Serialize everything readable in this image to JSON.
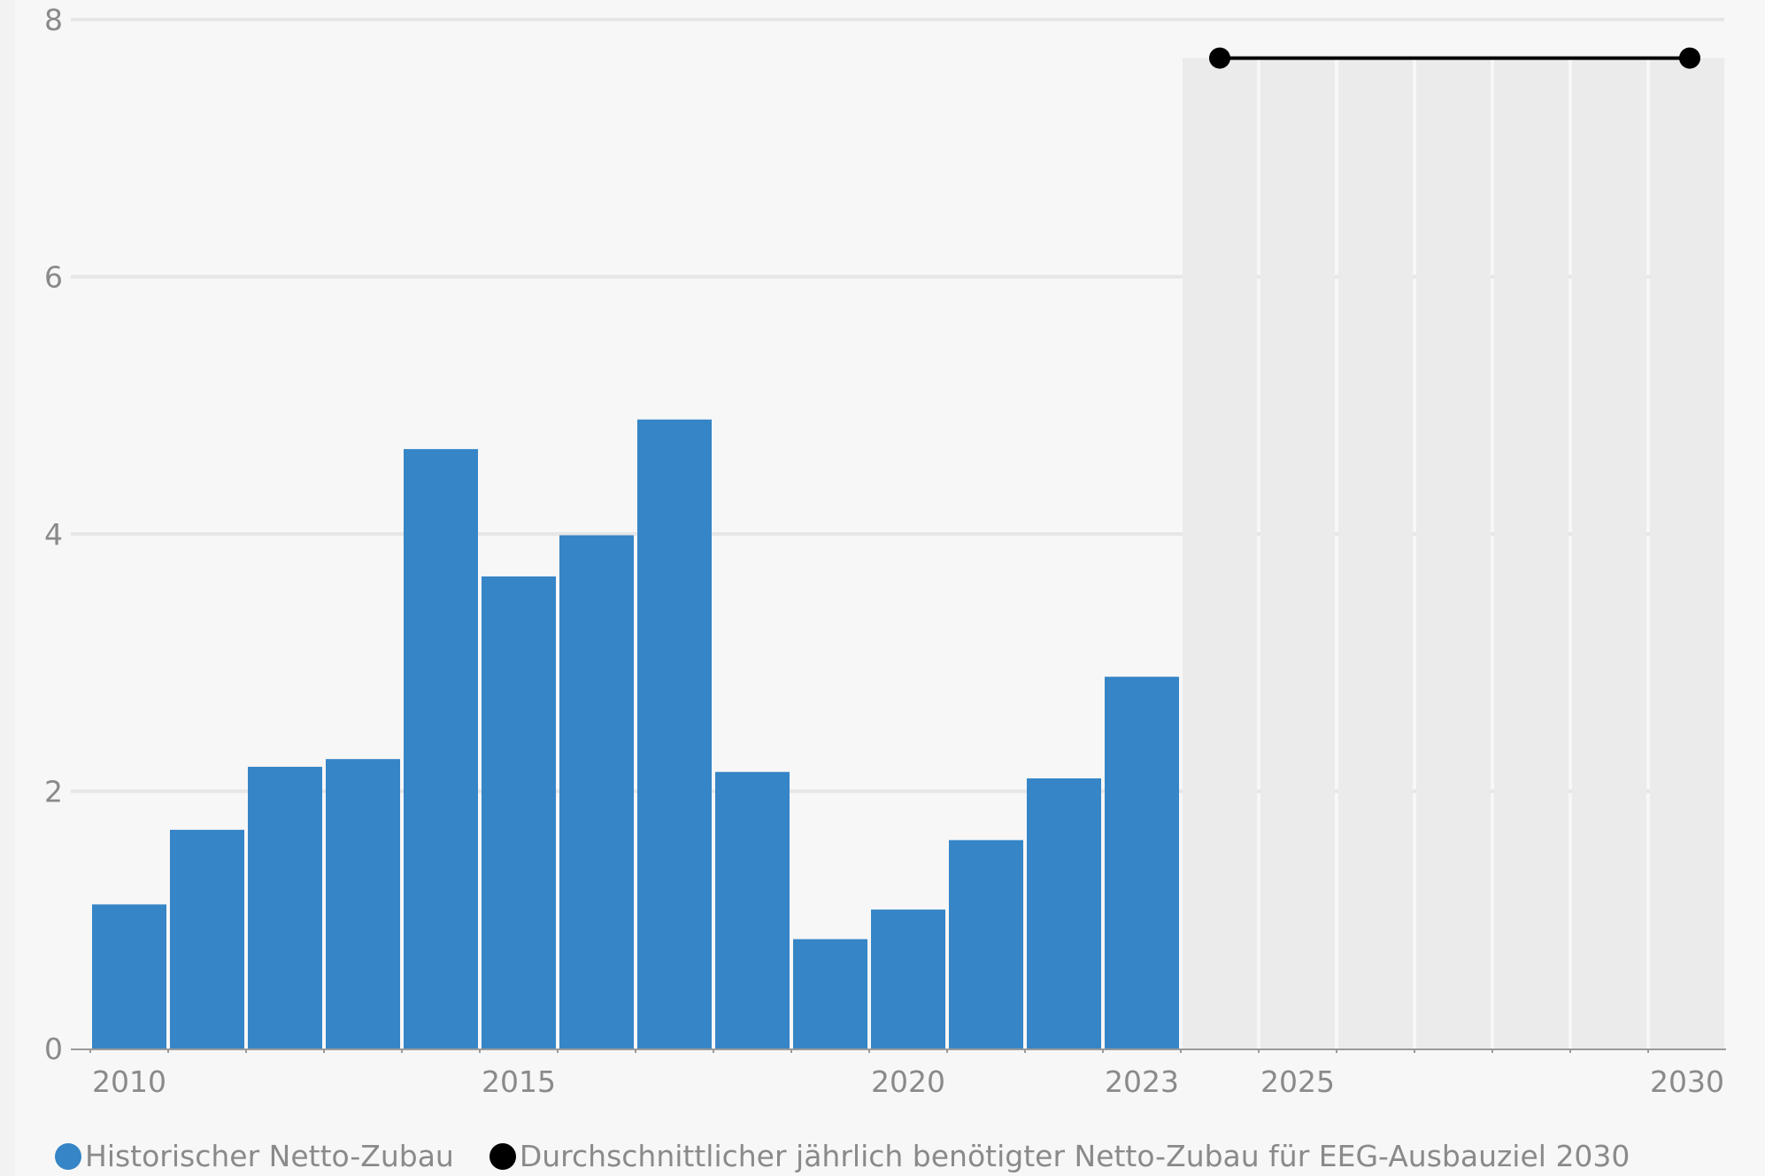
{
  "colors": {
    "bar": "#3585c7",
    "target_line": "#000000",
    "forecast_shade": "#ebebeb",
    "grid": "#e6e6e6",
    "axis": "#9a9a9a",
    "text": "#8a8a8a"
  },
  "legend": {
    "historic": "Historischer Netto-Zubau",
    "target": "Durchschnittlicher jährlich benötigter Netto-Zubau für EEG-Ausbauziel 2030"
  },
  "chart_data": {
    "type": "bar",
    "title": "",
    "xlabel": "",
    "ylabel": "",
    "ylim": [
      0,
      8
    ],
    "xlim": [
      2010,
      2030
    ],
    "yticks": [
      0,
      2,
      4,
      6,
      8
    ],
    "xticks": [
      2010,
      2015,
      2020,
      2023,
      2025,
      2030
    ],
    "grid": true,
    "legend_position": "bottom-left",
    "series": [
      {
        "name": "Historischer Netto-Zubau",
        "type": "bar",
        "x": [
          2010,
          2011,
          2012,
          2013,
          2014,
          2015,
          2016,
          2017,
          2018,
          2019,
          2020,
          2021,
          2022,
          2023
        ],
        "values": [
          1.12,
          1.7,
          2.19,
          2.25,
          4.66,
          3.67,
          3.99,
          4.89,
          2.15,
          0.85,
          1.08,
          1.62,
          2.1,
          2.89
        ]
      },
      {
        "name": "Durchschnittlicher jährlich benötigter Netto-Zubau für EEG-Ausbauziel 2030",
        "type": "line",
        "x": [
          2024,
          2030
        ],
        "values": [
          7.7,
          7.7
        ]
      }
    ],
    "forecast_range": [
      2024,
      2030
    ]
  }
}
